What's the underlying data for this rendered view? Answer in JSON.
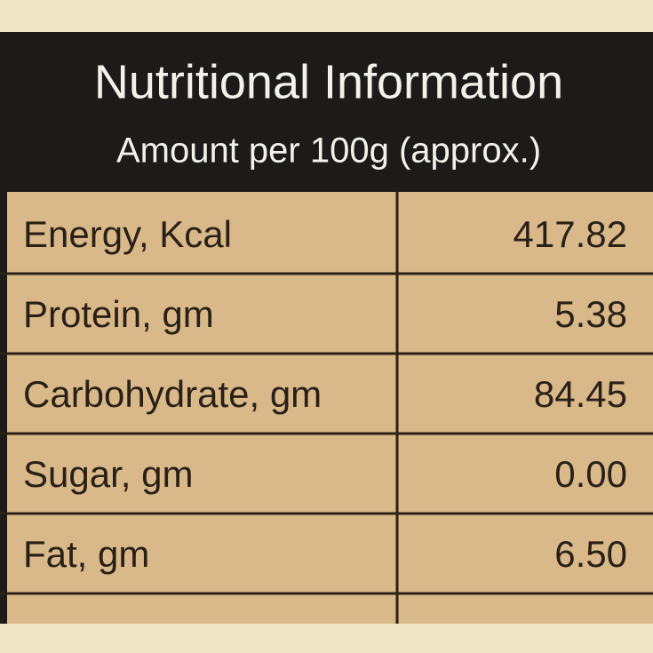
{
  "header": {
    "title": "Nutritional Information",
    "subtitle": "Amount per 100g (approx.)"
  },
  "table": {
    "rows": [
      [
        "Energy, Kcal",
        "417.82"
      ],
      [
        "Protein, gm",
        "5.38"
      ],
      [
        "Carbohydrate, gm",
        "84.45"
      ],
      [
        "Sugar, gm",
        "0.00"
      ],
      [
        "Fat, gm",
        "6.50"
      ]
    ]
  }
}
